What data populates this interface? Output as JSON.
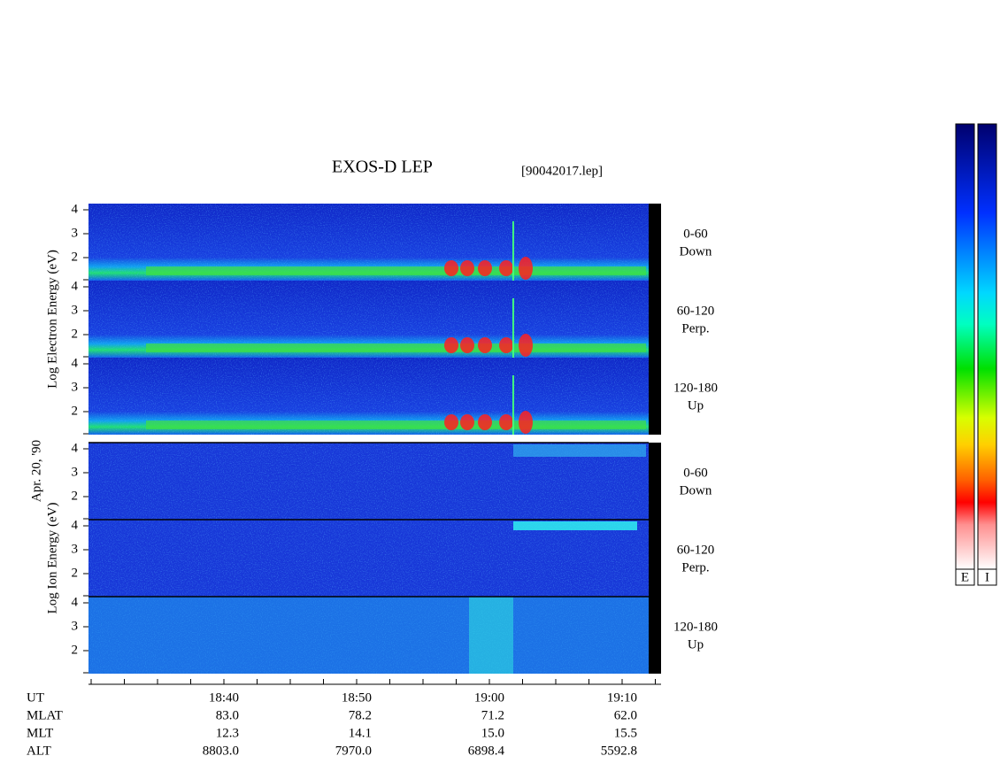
{
  "title": "EXOS-D LEP",
  "file_label": "[90042017.lep]",
  "date_label": "Apr. 20, '90",
  "electron_panel": {
    "axis_label": "Log Electron Energy (eV)",
    "channels": [
      {
        "range": "0-60",
        "direction": "Down",
        "ticks": [
          "4",
          "3",
          "2"
        ]
      },
      {
        "range": "60-120",
        "direction": "Perp.",
        "ticks": [
          "4",
          "3",
          "2"
        ]
      },
      {
        "range": "120-180",
        "direction": "Up",
        "ticks": [
          "4",
          "3",
          "2"
        ]
      }
    ]
  },
  "ion_panel": {
    "axis_label": "Log Ion Energy (eV)",
    "channels": [
      {
        "range": "0-60",
        "direction": "Down",
        "ticks": [
          "4",
          "3",
          "2"
        ]
      },
      {
        "range": "60-120",
        "direction": "Perp.",
        "ticks": [
          "4",
          "3",
          "2"
        ]
      },
      {
        "range": "120-180",
        "direction": "Up",
        "ticks": [
          "4",
          "3",
          "2"
        ]
      }
    ]
  },
  "orbit_table": {
    "rows": [
      {
        "label": "UT",
        "values": [
          "18:40",
          "18:50",
          "19:00",
          "19:10"
        ]
      },
      {
        "label": "MLAT",
        "values": [
          "83.0",
          "78.2",
          "71.2",
          "62.0"
        ]
      },
      {
        "label": "MLT",
        "values": [
          "12.3",
          "14.1",
          "15.0",
          "15.5"
        ]
      },
      {
        "label": "ALT",
        "values": [
          "8803.0",
          "7970.0",
          "6898.4",
          "5592.8"
        ]
      }
    ]
  },
  "color_bar_labels": [
    "E",
    "I"
  ]
}
